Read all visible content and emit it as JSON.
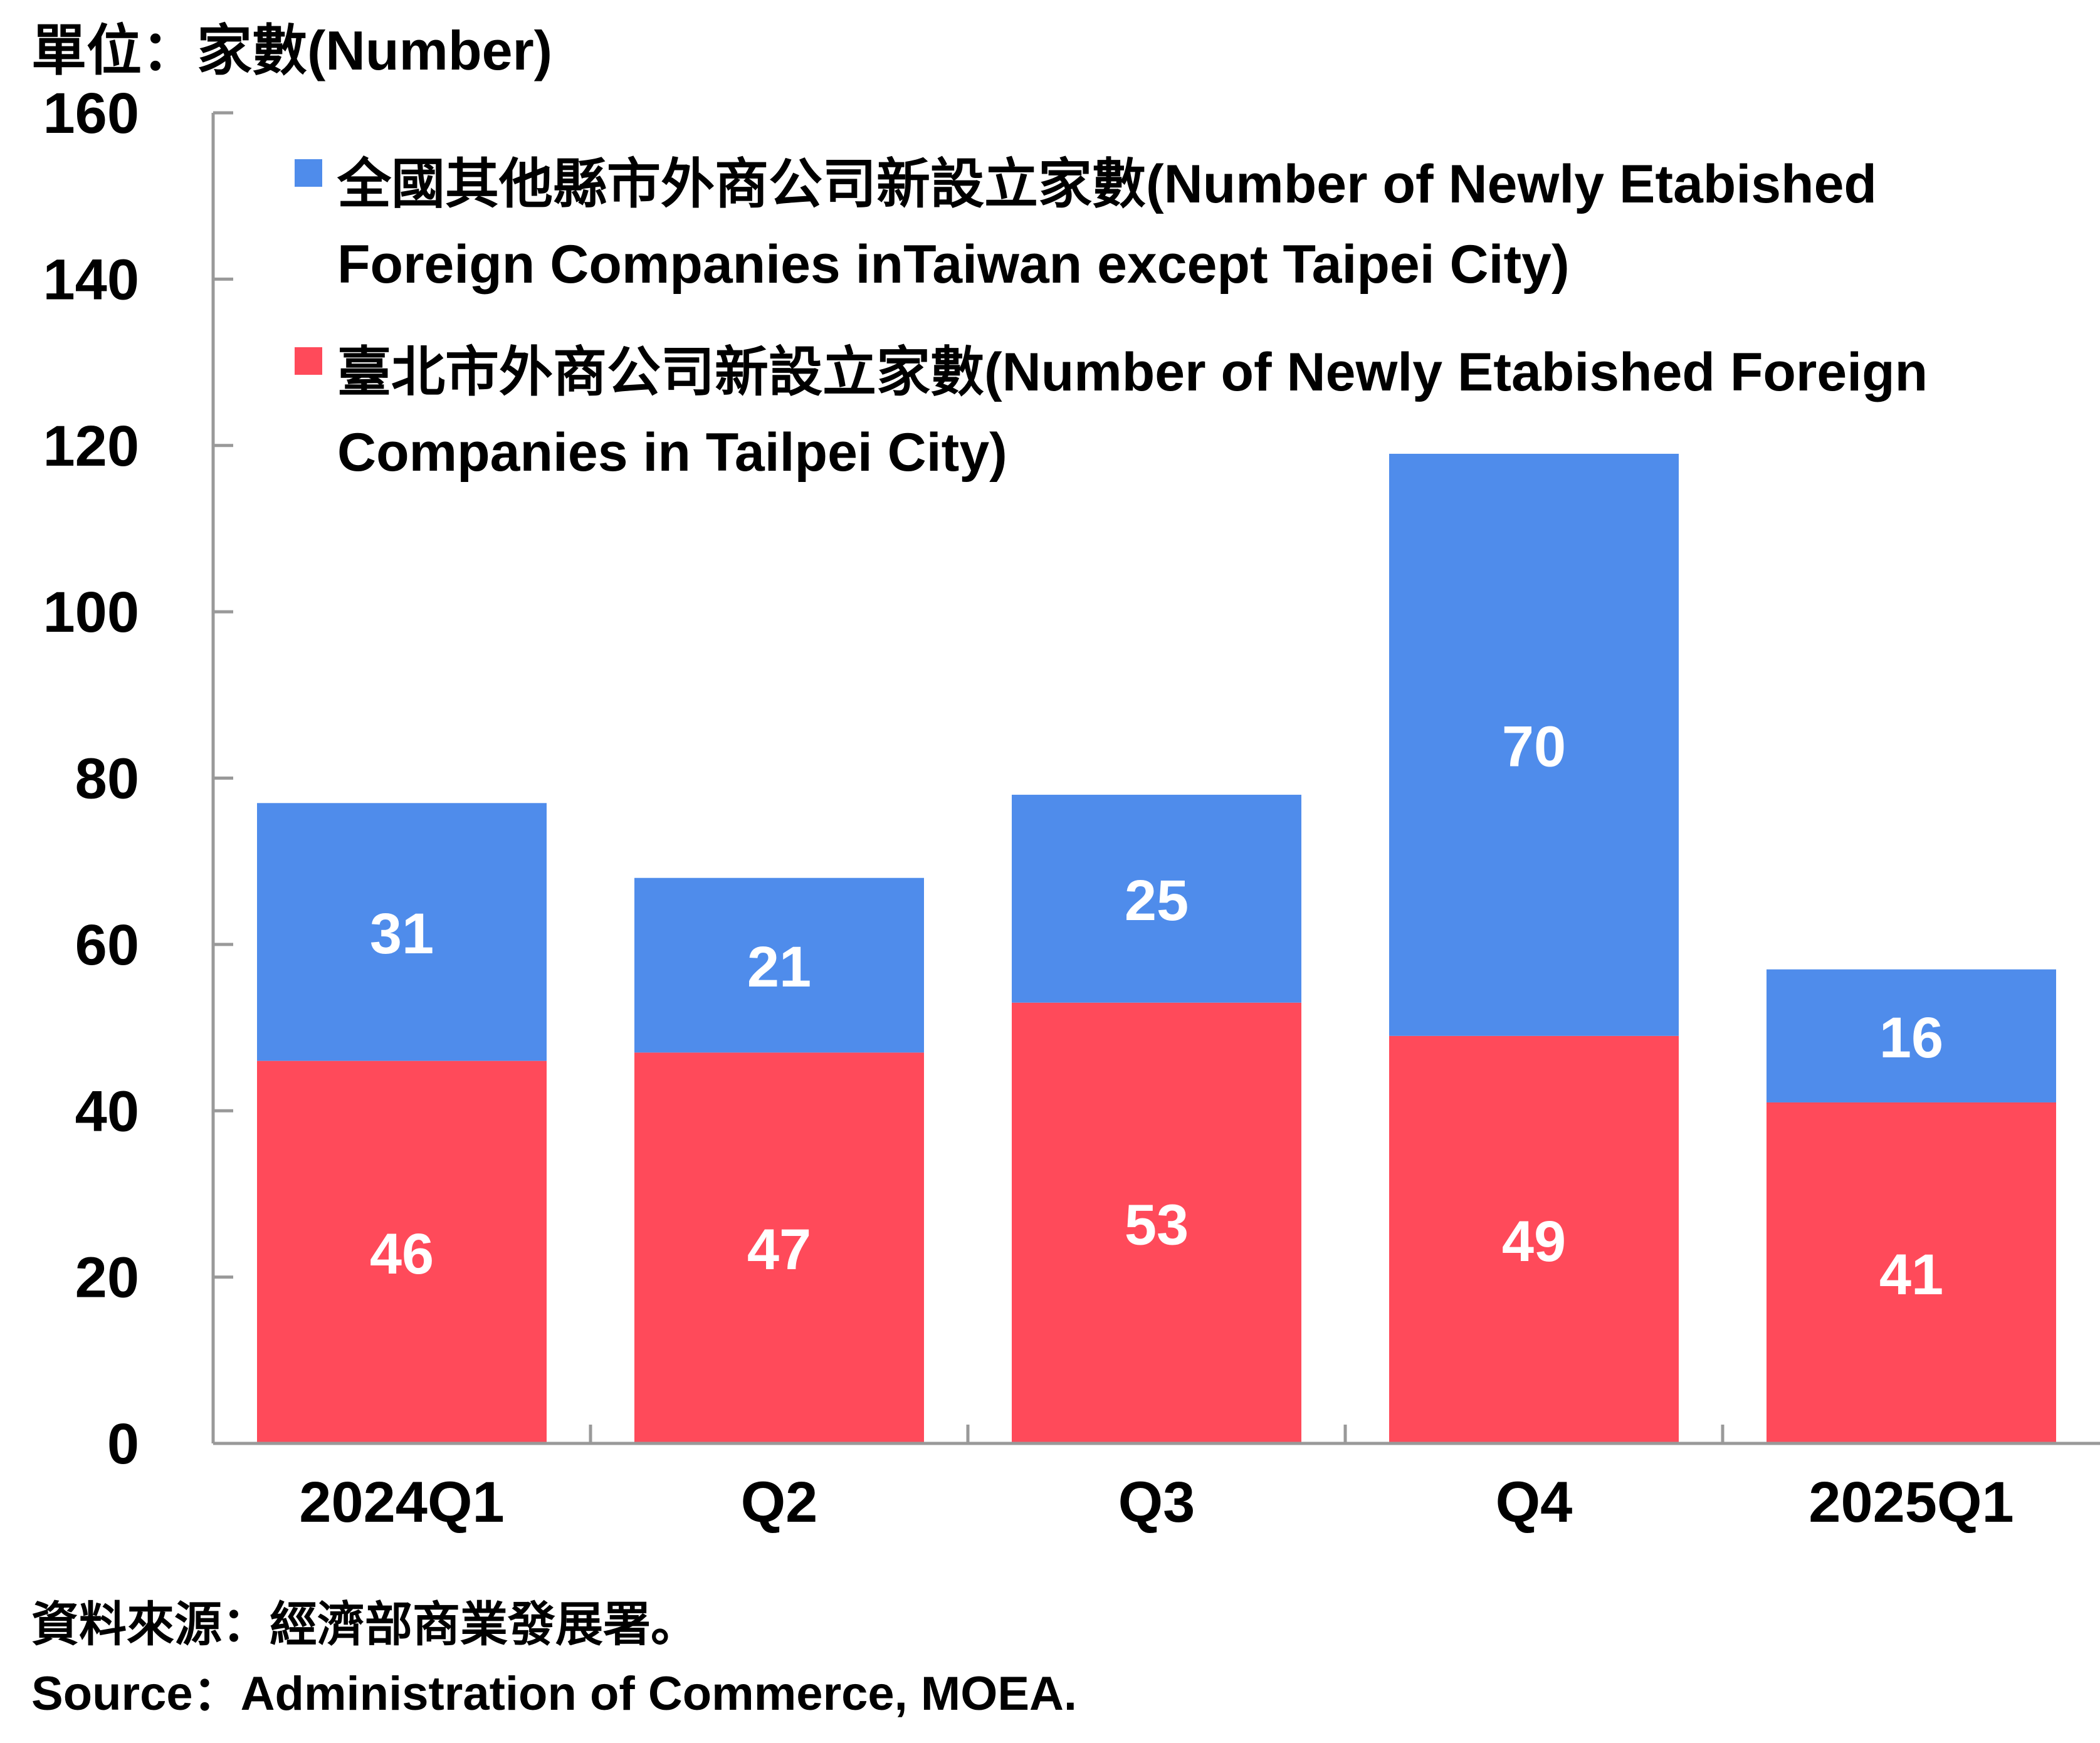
{
  "unit_label": "單位：家數(Number)",
  "source": {
    "zh": "資料來源：經濟部商業發展署。",
    "en": "Source：Administration of Commerce, MOEA."
  },
  "colors": {
    "taipei": "#ff4a5a",
    "other": "#4f8ceb",
    "axis": "#999999",
    "label_on_bar": "#ffffff"
  },
  "chart_data": {
    "type": "bar",
    "stacked": true,
    "categories": [
      "2024Q1",
      "Q2",
      "Q3",
      "Q4",
      "2025Q1"
    ],
    "series": [
      {
        "name": "臺北市外商公司新設立家數(Number of Newly Etabished Foreign Companies in Tailpei City)",
        "values": [
          46,
          47,
          53,
          49,
          41
        ],
        "color": "#ff4a5a"
      },
      {
        "name": "全國其他縣市外商公司新設立家數(Number of Newly Etabished Foreign Companies inTaiwan except Taipei City)",
        "values": [
          31,
          21,
          25,
          70,
          16
        ],
        "color": "#4f8ceb"
      }
    ],
    "ylim": [
      0,
      160
    ],
    "yticks": [
      0,
      20,
      40,
      60,
      80,
      100,
      120,
      140,
      160
    ],
    "grid": false,
    "legend": "top-left inside plot",
    "data_labels": true
  }
}
